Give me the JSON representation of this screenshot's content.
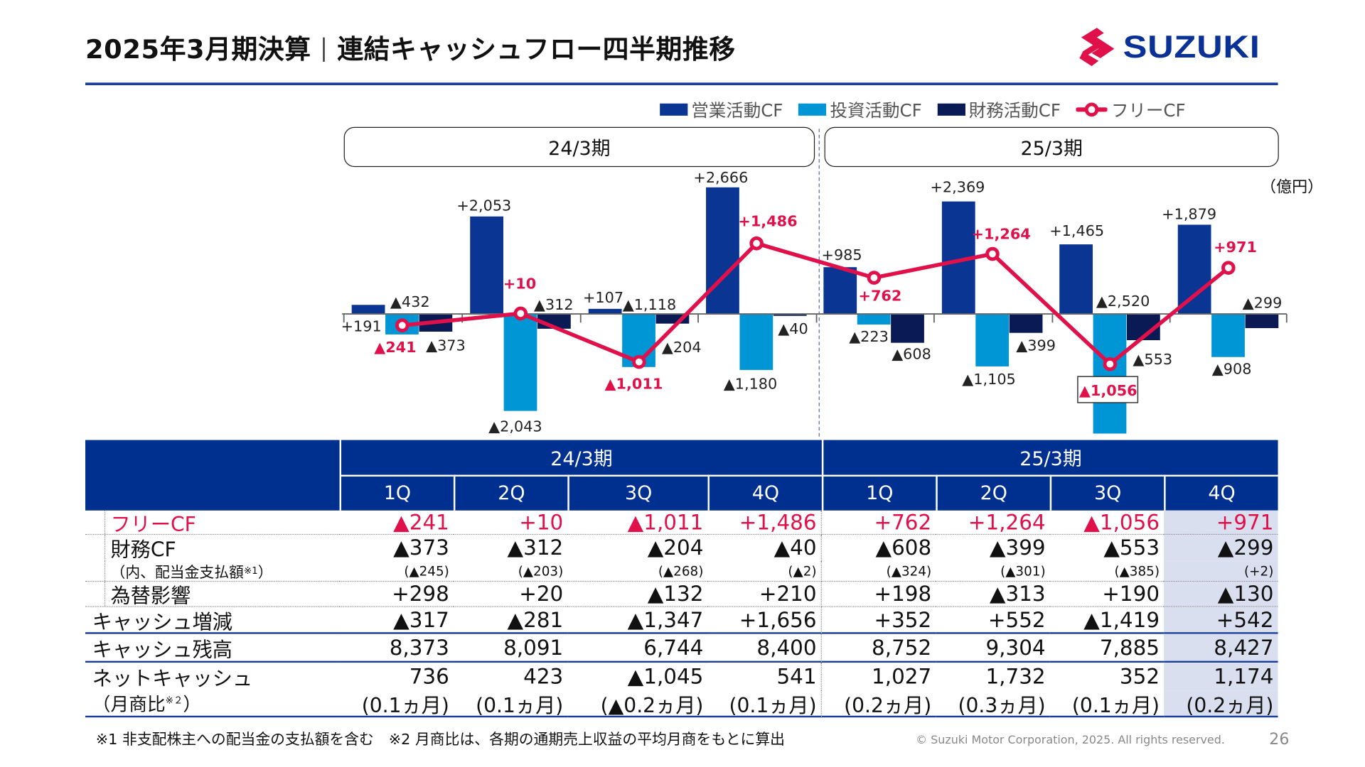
{
  "title": {
    "main": "2025年3月期決算",
    "sub": "連結キャッシュフロー四半期推移"
  },
  "logo": {
    "text": "SUZUKI",
    "colors": {
      "mark": "#e0114a",
      "word": "#0a3296"
    }
  },
  "legend": [
    {
      "label": "営業活動CF",
      "color": "#0a3592"
    },
    {
      "label": "投資活動CF",
      "color": "#0096d6"
    },
    {
      "label": "財務活動CF",
      "color": "#0a1a55"
    },
    {
      "label": "フリーCF",
      "color": "#e0114a"
    }
  ],
  "periods": [
    "24/3期",
    "25/3期"
  ],
  "unit": "（億円）",
  "chart_data": {
    "type": "bar",
    "categories": [
      "24/3期 1Q",
      "24/3期 2Q",
      "24/3期 3Q",
      "24/3期 4Q",
      "25/3期 1Q",
      "25/3期 2Q",
      "25/3期 3Q",
      "25/3期 4Q"
    ],
    "series": [
      {
        "name": "営業活動CF",
        "kind": "bar",
        "values": [
          191,
          2053,
          107,
          2666,
          985,
          2369,
          1465,
          1879
        ],
        "labels": [
          "+191",
          "+2,053",
          "+107",
          "+2,666",
          "+985",
          "+2,369",
          "+1,465",
          "+1,879"
        ]
      },
      {
        "name": "投資活動CF",
        "kind": "bar",
        "values": [
          -432,
          -2043,
          -1118,
          -1180,
          -223,
          -1105,
          -2520,
          -908
        ],
        "labels": [
          "▲432",
          "▲2,043",
          "▲1,118",
          "▲1,180",
          "▲223",
          "▲1,105",
          "▲2,520",
          "▲908"
        ]
      },
      {
        "name": "財務活動CF",
        "kind": "bar",
        "values": [
          -373,
          -312,
          -204,
          -40,
          -608,
          -399,
          -553,
          -299
        ],
        "labels": [
          "▲373",
          "▲312",
          "▲204",
          "▲40",
          "▲608",
          "▲399",
          "▲553",
          "▲299"
        ]
      },
      {
        "name": "フリーCF",
        "kind": "line",
        "values": [
          -241,
          10,
          -1011,
          1486,
          762,
          1264,
          -1056,
          971
        ],
        "labels": [
          "▲241",
          "+10",
          "▲1,011",
          "+1,486",
          "+762",
          "+1,264",
          "▲1,056",
          "+971"
        ]
      }
    ],
    "colors": {
      "operating": "#0a3592",
      "investing": "#0096d6",
      "financing": "#0a1a55",
      "free": "#e0114a"
    },
    "negative_prefix": "▲"
  },
  "table": {
    "quarters": [
      "1Q",
      "2Q",
      "3Q",
      "4Q",
      "1Q",
      "2Q",
      "3Q",
      "4Q"
    ],
    "rows": [
      {
        "label": "フリーCF",
        "values": [
          "▲241",
          "+10",
          "▲1,011",
          "+1,486",
          "+762",
          "+1,264",
          "▲1,056",
          "+971"
        ]
      },
      {
        "label": "財務CF",
        "values": [
          "▲373",
          "▲312",
          "▲204",
          "▲40",
          "▲608",
          "▲399",
          "▲553",
          "▲299"
        ]
      },
      {
        "label": "（内、配当金支払額",
        "note": "※1",
        "label_end": "）",
        "values": [
          "(▲245)",
          "(▲203)",
          "(▲268)",
          "(▲2)",
          "(▲324)",
          "(▲301)",
          "(▲385)",
          "(+2)"
        ]
      },
      {
        "label": "為替影響",
        "values": [
          "+298",
          "+20",
          "▲132",
          "+210",
          "+198",
          "▲313",
          "+190",
          "▲130"
        ]
      },
      {
        "label": "キャッシュ増減",
        "values": [
          "▲317",
          "▲281",
          "▲1,347",
          "+1,656",
          "+352",
          "+552",
          "▲1,419",
          "+542"
        ]
      },
      {
        "label": "キャッシュ残高",
        "values": [
          "8,373",
          "8,091",
          "6,744",
          "8,400",
          "8,752",
          "9,304",
          "7,885",
          "8,427"
        ]
      },
      {
        "label": "ネットキャッシュ",
        "values": [
          "736",
          "423",
          "▲1,045",
          "541",
          "1,027",
          "1,732",
          "352",
          "1,174"
        ]
      },
      {
        "label": "（月商比",
        "note": "※２",
        "label_end": "）",
        "values": [
          "(0.1ヵ月)",
          "(0.1ヵ月)",
          "(▲0.2ヵ月)",
          "(0.1ヵ月)",
          "(0.2ヵ月)",
          "(0.3ヵ月)",
          "(0.1ヵ月)",
          "(0.2ヵ月)"
        ]
      }
    ]
  },
  "footnote": "※1 非支配株主への配当金の支払額を含む　※2 月商比は、各期の通期売上収益の平均月商をもとに算出",
  "copyright": "© Suzuki Motor Corporation, 2025. All rights reserved.",
  "page_number": "26"
}
